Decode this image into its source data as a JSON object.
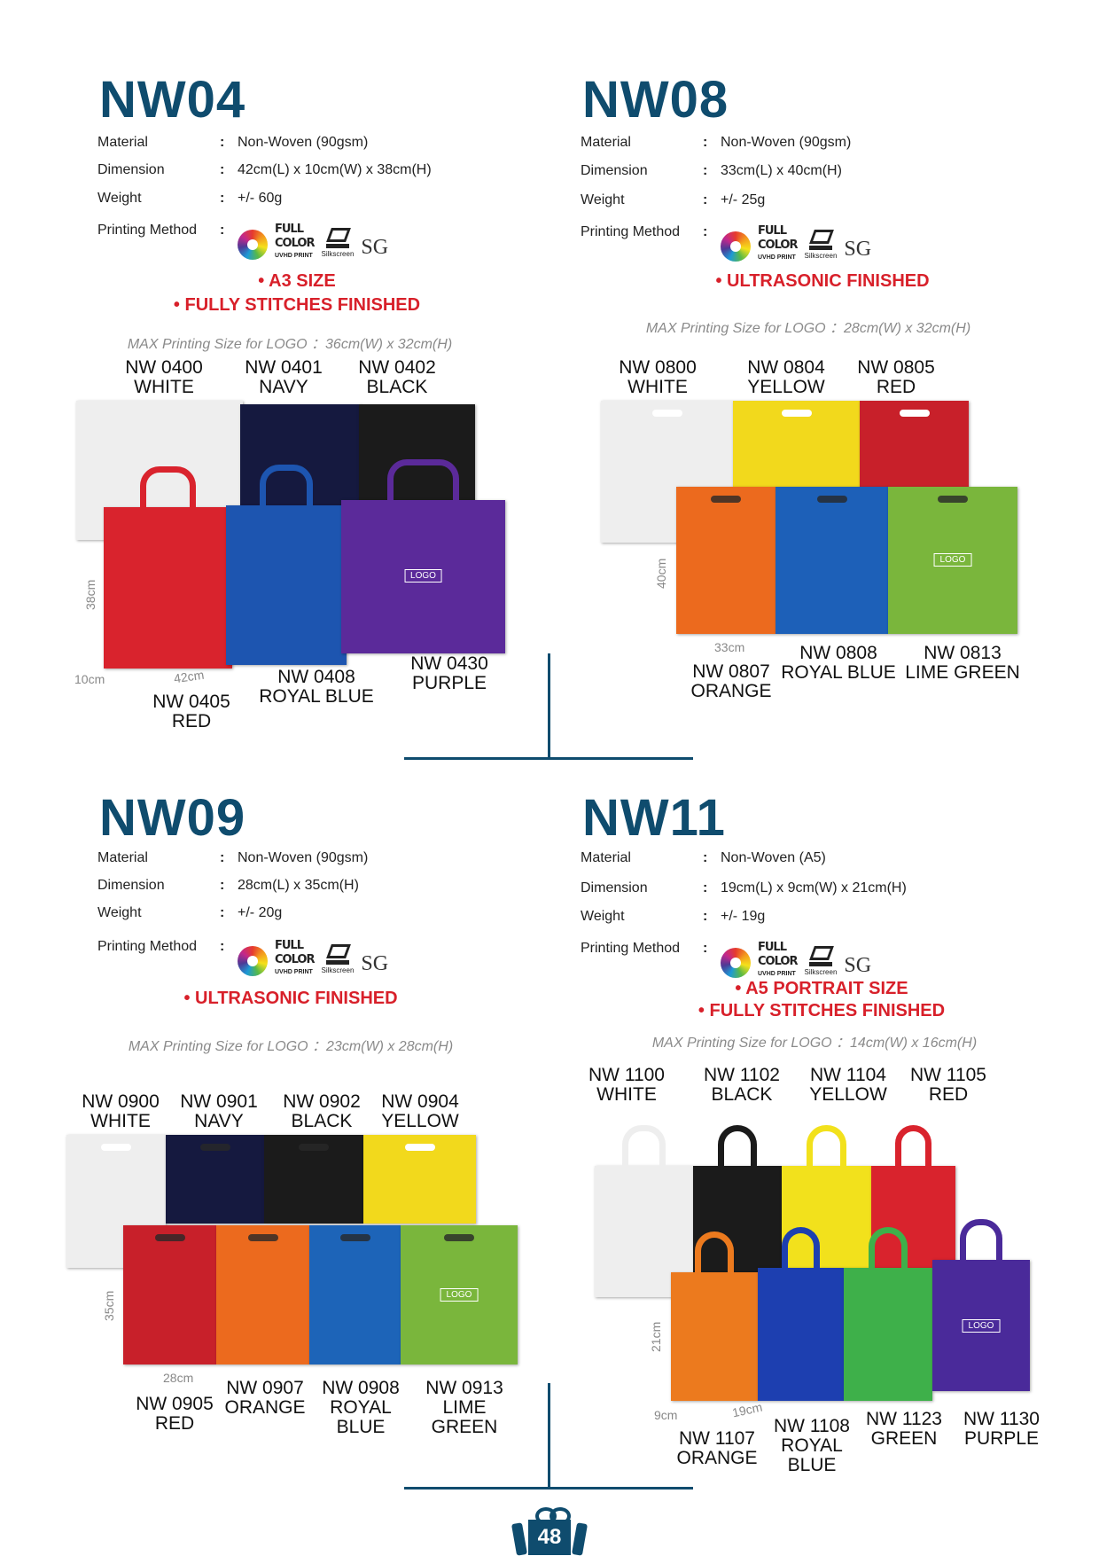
{
  "colors": {
    "title": "#0f4c6e",
    "note": "#d8202a",
    "divider": "#0f4c6e"
  },
  "spec_labels": {
    "material": "Material",
    "dimension": "Dimension",
    "weight": "Weight",
    "printing": "Printing Method",
    "colon": ":"
  },
  "printing_icons": {
    "full": "FULL",
    "color": "COLOR",
    "uvhd": "UVHD PRINT",
    "silkscreen": "Silkscreen",
    "sg": "SG"
  },
  "sections": [
    {
      "title": "NW04",
      "material": "Non-Woven (90gsm)",
      "dimension": "42cm(L) x 10cm(W) x 38cm(H)",
      "weight": "+/- 60g",
      "notes": [
        "A3 SIZE",
        "FULLY STITCHES FINISHED"
      ],
      "max_print": "MAX Printing Size for LOGO ：36cm(W) x 32cm(H)",
      "dims": [
        "38cm",
        "10cm",
        "42cm"
      ],
      "logo": "LOGO",
      "variants": [
        {
          "code": "NW 0400",
          "color": "WHITE",
          "hex": "#eeeeee"
        },
        {
          "code": "NW 0401",
          "color": "NAVY",
          "hex": "#15193f"
        },
        {
          "code": "NW 0402",
          "color": "BLACK",
          "hex": "#1b1b1b"
        },
        {
          "code": "NW 0405",
          "color": "RED",
          "hex": "#d9232d"
        },
        {
          "code": "NW 0408",
          "color": "ROYAL BLUE",
          "hex": "#1d55b0"
        },
        {
          "code": "NW 0430",
          "color": "PURPLE",
          "hex": "#5b2a9a"
        }
      ]
    },
    {
      "title": "NW08",
      "material": "Non-Woven (90gsm)",
      "dimension": "33cm(L) x 40cm(H)",
      "weight": "+/- 25g",
      "notes": [
        "ULTRASONIC FINISHED"
      ],
      "max_print": "MAX Printing Size for LOGO ：28cm(W) x 32cm(H)",
      "dims": [
        "40cm",
        "33cm"
      ],
      "logo": "LOGO",
      "variants": [
        {
          "code": "NW 0800",
          "color": "WHITE",
          "hex": "#eeeeee"
        },
        {
          "code": "NW 0804",
          "color": "YELLOW",
          "hex": "#f2d91c"
        },
        {
          "code": "NW 0805",
          "color": "RED",
          "hex": "#c8202a"
        },
        {
          "code": "NW 0807",
          "color": "ORANGE",
          "hex": "#ec6a1e"
        },
        {
          "code": "NW 0808",
          "color": "ROYAL BLUE",
          "hex": "#1d60b8"
        },
        {
          "code": "NW 0813",
          "color": "LIME GREEN",
          "hex": "#7ab63c"
        }
      ]
    },
    {
      "title": "NW09",
      "material": "Non-Woven (90gsm)",
      "dimension": "28cm(L) x 35cm(H)",
      "weight": "+/- 20g",
      "notes": [
        "ULTRASONIC FINISHED"
      ],
      "max_print": "MAX Printing Size for LOGO ：23cm(W) x 28cm(H)",
      "dims": [
        "35cm",
        "28cm"
      ],
      "logo": "LOGO",
      "variants": [
        {
          "code": "NW 0900",
          "color": "WHITE",
          "hex": "#eeeeee"
        },
        {
          "code": "NW 0901",
          "color": "NAVY",
          "hex": "#15193f"
        },
        {
          "code": "NW 0902",
          "color": "BLACK",
          "hex": "#1b1b1b"
        },
        {
          "code": "NW 0904",
          "color": "YELLOW",
          "hex": "#f2d91c"
        },
        {
          "code": "NW 0905",
          "color": "RED",
          "hex": "#c8202a"
        },
        {
          "code": "NW 0907",
          "color": "ORANGE",
          "hex": "#ec6a1e"
        },
        {
          "code": "NW 0908",
          "color": "ROYAL BLUE",
          "hex": "#1d64b8"
        },
        {
          "code": "NW 0913",
          "color": "LIME GREEN",
          "hex": "#7ab63c"
        }
      ]
    },
    {
      "title": "NW11",
      "material": "Non-Woven (A5)",
      "dimension": "19cm(L) x 9cm(W) x 21cm(H)",
      "weight": "+/- 19g",
      "notes": [
        "A5 PORTRAIT SIZE",
        "FULLY STITCHES FINISHED"
      ],
      "max_print": "MAX Printing Size for LOGO ：14cm(W) x 16cm(H)",
      "dims": [
        "21cm",
        "9cm",
        "19cm"
      ],
      "logo": "LOGO",
      "variants": [
        {
          "code": "NW 1100",
          "color": "WHITE",
          "hex": "#eeeeee"
        },
        {
          "code": "NW 1102",
          "color": "BLACK",
          "hex": "#1b1b1b"
        },
        {
          "code": "NW 1104",
          "color": "YELLOW",
          "hex": "#f2e11c"
        },
        {
          "code": "NW 1105",
          "color": "RED",
          "hex": "#d9232d"
        },
        {
          "code": "NW 1107",
          "color": "ORANGE",
          "hex": "#ec7a1e"
        },
        {
          "code": "NW 1108",
          "color": "ROYAL BLUE",
          "hex": "#1d3fb0"
        },
        {
          "code": "NW 1123",
          "color": "GREEN",
          "hex": "#3eb04a"
        },
        {
          "code": "NW 1130",
          "color": "PURPLE",
          "hex": "#4a2a9a"
        }
      ]
    }
  ],
  "page_number": "48"
}
